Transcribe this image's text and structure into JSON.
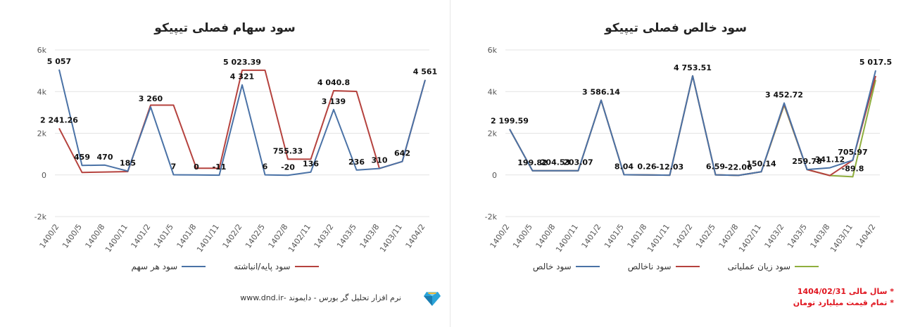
{
  "chart_data": [
    {
      "type": "line",
      "title": "سود سهام فصلی تیپیکو",
      "categories": [
        "1400/2",
        "1400/5",
        "1400/8",
        "1400/11",
        "1401/2",
        "1401/5",
        "1401/8",
        "1401/11",
        "1402/2",
        "1402/5",
        "1402/8",
        "1402/11",
        "1403/2",
        "1403/5",
        "1403/8",
        "1403/11",
        "1404/2"
      ],
      "ylim": [
        -2000,
        6000
      ],
      "yticks": [
        -2000,
        0,
        2000,
        4000,
        6000
      ],
      "ytick_labels": [
        "-2k",
        "0",
        "2k",
        "4k",
        "6k"
      ],
      "series": [
        {
          "name": "سود هر سهم",
          "color": "#4a72a6",
          "values": [
            5057,
            459,
            470,
            185,
            3260,
            7,
            0,
            -11,
            4321,
            6,
            -20,
            136,
            3139,
            236,
            310,
            642,
            4561
          ],
          "labels": [
            "5 057",
            "459",
            "470",
            "185",
            "3 260",
            "7",
            "0",
            "-11",
            "4 321",
            "6",
            "-20",
            "136",
            "3 139",
            "236",
            "310",
            "642",
            "4 561"
          ]
        },
        {
          "name": "سود پایه/انباشته",
          "color": "#b5423e",
          "values": [
            2241.26,
            120,
            140,
            160,
            3350,
            3350,
            320,
            320,
            5023.39,
            5023.39,
            755.33,
            755.33,
            4040.8,
            4010,
            310,
            642,
            4561
          ],
          "labels": [
            "2 241.26",
            "",
            "",
            "",
            "",
            "",
            "",
            "",
            "5 023.39",
            "",
            "755.33",
            "",
            "4 040.8",
            "",
            "",
            "",
            ""
          ]
        }
      ]
    },
    {
      "type": "line",
      "title": "سود خالص فصلی تیپیکو",
      "categories": [
        "1400/2",
        "1400/5",
        "1400/8",
        "1400/11",
        "1401/2",
        "1401/5",
        "1401/8",
        "1401/11",
        "1402/2",
        "1402/5",
        "1402/8",
        "1402/11",
        "1403/2",
        "1403/5",
        "1403/8",
        "1403/11",
        "1404/2"
      ],
      "ylim": [
        -2000,
        6000
      ],
      "yticks": [
        -2000,
        0,
        2000,
        4000,
        6000
      ],
      "ytick_labels": [
        "-2k",
        "0",
        "2k",
        "4k",
        "6k"
      ],
      "series": [
        {
          "name": "سود خالص",
          "color": "#4a72a6",
          "values": [
            2199.59,
            199.82,
            204.53,
            203.07,
            3586.14,
            8.04,
            0.26,
            -12.03,
            4753.51,
            6.59,
            -22.06,
            150.14,
            3452.72,
            259.78,
            341.12,
            705.97,
            5017.5
          ],
          "labels": [
            "2 199.59",
            "199.82",
            "204.53",
            "203.07",
            "3 586.14",
            "8.04",
            "0.26",
            "-12.03",
            "4 753.51",
            "6.59",
            "-22.06",
            "150.14",
            "3 452.72",
            "259.78",
            "341.12",
            "705.97",
            "5 017.5"
          ]
        },
        {
          "name": "سود ناخالص",
          "color": "#b5423e",
          "values": [
            2199.59,
            199.82,
            204.53,
            203.07,
            3586.14,
            8.04,
            0.26,
            -12.03,
            4753.51,
            6.59,
            -22.06,
            150.14,
            3400,
            259.78,
            -30,
            705.97,
            4750
          ]
        },
        {
          "name": "سود زیان عملیاتی",
          "color": "#8fae3e",
          "values": [
            2199.59,
            199.82,
            204.53,
            203.07,
            3586.14,
            8.04,
            0.26,
            -12.03,
            4753.51,
            6.59,
            -22.06,
            150.14,
            3350,
            259.78,
            -30,
            -89.8,
            4561
          ],
          "labels": [
            "",
            "",
            "",
            "",
            "",
            "",
            "",
            "",
            "",
            "",
            "",
            "",
            "",
            "",
            "",
            "-89.8",
            ""
          ]
        }
      ]
    }
  ],
  "footer": {
    "text": "نرم افزار تحلیل گر بورس - دایموند -www.dnd.ir",
    "note1": "* سال مالی 1404/02/31",
    "note2": "* تمام قیمت میلیارد تومان"
  }
}
